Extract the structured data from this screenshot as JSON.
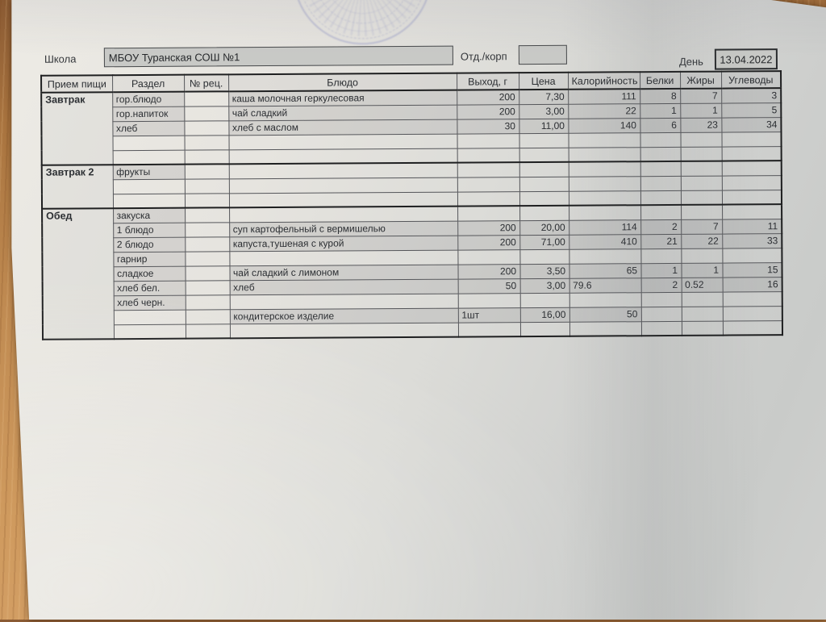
{
  "form": {
    "school_label": "Школа",
    "school_value": "МБОУ Туранская СОШ №1",
    "dept_label": "Отд./корп",
    "dept_value": "",
    "day_label": "День",
    "day_value": "13.04.2022"
  },
  "colors": {
    "paper": "#dddddb",
    "wood": "#c08b52",
    "stamp_blue": "#6c73b9",
    "cell_fill": "#c9cac7",
    "ink": "#2c2f33"
  },
  "icons": {
    "stamp": "round-seal-stamp"
  },
  "table": {
    "columns": [
      "Прием пищи",
      "Раздел",
      "№ рец.",
      "Блюдо",
      "Выход, г",
      "Цена",
      "Калорийность",
      "Белки",
      "Жиры",
      "Углеводы"
    ],
    "sections": [
      {
        "meal": "Завтрак",
        "rows": [
          {
            "section": "гор.блюдо",
            "dish": "каша молочная геркулесовая",
            "out": "200",
            "price": "7,30",
            "cal": "111",
            "prot": "8",
            "fat": "7",
            "carb": "3"
          },
          {
            "section": "гор.напиток",
            "dish": "чай сладкий",
            "out": "200",
            "price": "3,00",
            "cal": "22",
            "prot": "1",
            "fat": "1",
            "carb": "5"
          },
          {
            "section": "хлеб",
            "dish": "хлеб с маслом",
            "out": "30",
            "price": "11,00",
            "cal": "140",
            "prot": "6",
            "fat": "23",
            "carb": "34"
          },
          {},
          {}
        ]
      },
      {
        "meal": "Завтрак 2",
        "rows": [
          {
            "section": "фрукты"
          },
          {},
          {}
        ]
      },
      {
        "meal": "Обед",
        "rows": [
          {
            "section": "закуска"
          },
          {
            "section": "1 блюдо",
            "dish": "суп картофельный с вермишелью",
            "out": "200",
            "price": "20,00",
            "cal": "114",
            "prot": "2",
            "fat": "7",
            "carb": "11"
          },
          {
            "section": "2 блюдо",
            "dish": "капуста,тушеная с курой",
            "out": "200",
            "price": "71,00",
            "cal": "410",
            "prot": "21",
            "fat": "22",
            "carb": "33"
          },
          {
            "section": "гарнир"
          },
          {
            "section": "сладкое",
            "dish": "чай сладкий с лимоном",
            "out": "200",
            "price": "3,50",
            "cal": "65",
            "prot": "1",
            "fat": "1",
            "carb": "15"
          },
          {
            "section": "хлеб бел.",
            "dish": "хлеб",
            "out": "50",
            "price": "3,00",
            "cal": "79.6",
            "cal_align": "left",
            "prot": "2",
            "fat": "0.52",
            "fat_align": "left",
            "carb": "16"
          },
          {
            "section": "хлеб черн."
          },
          {
            "section": "",
            "dish": "кондитерское изделие",
            "out": "1шт",
            "out_align": "left",
            "price": "16,00",
            "cal": "50"
          },
          {}
        ]
      }
    ]
  }
}
